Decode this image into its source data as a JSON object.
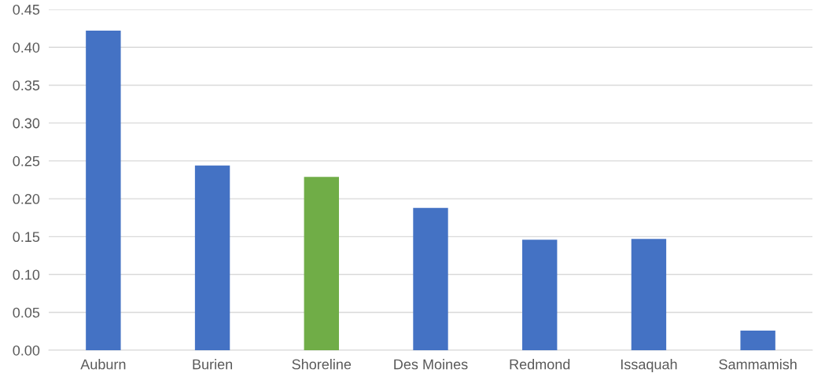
{
  "chart_data": {
    "type": "bar",
    "categories": [
      "Auburn",
      "Burien",
      "Shoreline",
      "Des Moines",
      "Redmond",
      "Issaquah",
      "Sammamish"
    ],
    "values": [
      0.422,
      0.244,
      0.229,
      0.188,
      0.146,
      0.147,
      0.026
    ],
    "colors": [
      "#4472c4",
      "#4472c4",
      "#70ad47",
      "#4472c4",
      "#4472c4",
      "#4472c4",
      "#4472c4"
    ],
    "ylim": [
      0,
      0.45
    ],
    "yticks": [
      {
        "value": 0,
        "label": "0.00"
      },
      {
        "value": 0.05,
        "label": "0.05"
      },
      {
        "value": 0.1,
        "label": "0.10"
      },
      {
        "value": 0.15,
        "label": "0.15"
      },
      {
        "value": 0.2,
        "label": "0.20"
      },
      {
        "value": 0.25,
        "label": "0.25"
      },
      {
        "value": 0.3,
        "label": "0.30"
      },
      {
        "value": 0.35,
        "label": "0.35"
      },
      {
        "value": 0.4,
        "label": "0.40"
      },
      {
        "value": 0.45,
        "label": "0.45"
      }
    ],
    "grid": "y"
  }
}
